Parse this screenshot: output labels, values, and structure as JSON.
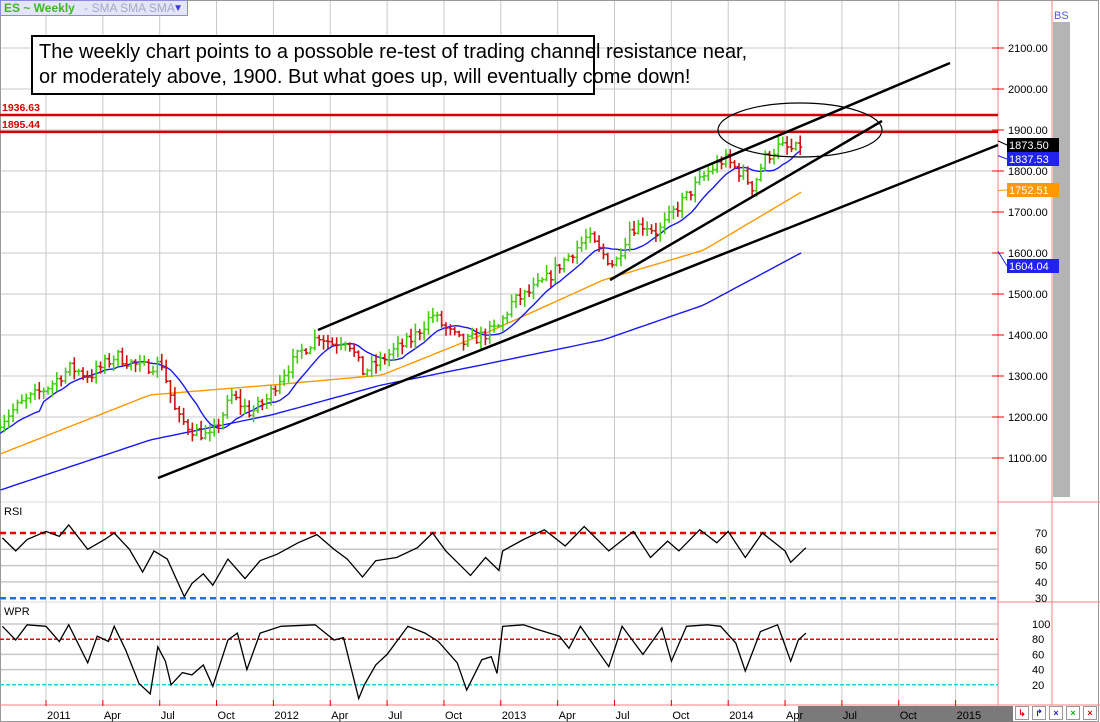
{
  "header": {
    "symbol": "ES ~ Weekly",
    "indicators": "-  SMA SMA SMA",
    "dropdown_icon": "triangle-down"
  },
  "annotation": {
    "line1": "The weekly chart points to a possoble re-test of trading channel resistance near,",
    "line2": "or moderately above, 1900.  But what goes up, will eventually come down!"
  },
  "corner_label": "BS",
  "levels": [
    {
      "label": "1936.63",
      "value": 1936.63,
      "color": "#d40000"
    },
    {
      "label": "1895.44",
      "value": 1895.44,
      "color": "#d40000"
    }
  ],
  "price_axis": [
    "2100.00",
    "2000.00",
    "1900.00",
    "1800.00",
    "1700.00",
    "1600.00",
    "1500.00",
    "1400.00",
    "1300.00",
    "1200.00",
    "1100.00"
  ],
  "price_tags": [
    {
      "label": "1873.50",
      "value": 1873.5,
      "bg": "#000000"
    },
    {
      "label": "1837.53",
      "value": 1837.53,
      "bg": "#2222ee"
    },
    {
      "label": "1752.51",
      "value": 1752.51,
      "bg": "#ff9900"
    },
    {
      "label": "1604.04",
      "value": 1604.04,
      "bg": "#2222ee"
    }
  ],
  "rsi": {
    "title": "RSI",
    "axis": [
      "70",
      "60",
      "50",
      "40",
      "30"
    ]
  },
  "wpr": {
    "title": "WPR",
    "axis": [
      "100",
      "80",
      "60",
      "40",
      "20"
    ]
  },
  "time_axis": [
    {
      "label": "2011",
      "m": 0
    },
    {
      "label": "Apr",
      "m": 3
    },
    {
      "label": "Jul",
      "m": 6
    },
    {
      "label": "Oct",
      "m": 9
    },
    {
      "label": "2012",
      "m": 12
    },
    {
      "label": "Apr",
      "m": 15
    },
    {
      "label": "Jul",
      "m": 18
    },
    {
      "label": "Oct",
      "m": 21
    },
    {
      "label": "2013",
      "m": 24
    },
    {
      "label": "Apr",
      "m": 27
    },
    {
      "label": "Jul",
      "m": 30
    },
    {
      "label": "Oct",
      "m": 33
    },
    {
      "label": "2014",
      "m": 36
    },
    {
      "label": "Apr",
      "m": 39
    },
    {
      "label": "Jul",
      "m": 42
    },
    {
      "label": "Oct",
      "m": 45
    },
    {
      "label": "2015",
      "m": 48
    }
  ],
  "toolbar_buttons": [
    {
      "name": "arrow-down-left",
      "glyph": "↳",
      "color": "#e00000"
    },
    {
      "name": "arrow-up-right",
      "glyph": "↱",
      "color": "#1f1fd0"
    },
    {
      "name": "zoom-blue",
      "glyph": "×",
      "color": "#1f1fd0"
    },
    {
      "name": "zoom-green",
      "glyph": "×",
      "color": "#1aa51a"
    },
    {
      "name": "close-red",
      "glyph": "×",
      "color": "#e00000"
    }
  ],
  "colors": {
    "up": "#44cc11",
    "down": "#cc1111",
    "sma_fast": "#1a1aee",
    "sma_mid": "#ff9900",
    "sma_slow": "#1a1aee",
    "grid": "#c8c8c8",
    "frame": "#f08080"
  },
  "chart_data": {
    "type": "ohlc",
    "title": "ES ~ Weekly",
    "x_unit": "months since Jan 2011",
    "price_range": [
      1000,
      2150
    ],
    "price_anchors": [
      [
        -2.4,
        1190
      ],
      [
        -1.4,
        1230
      ],
      [
        0,
        1270
      ],
      [
        1.3,
        1320
      ],
      [
        2.3,
        1300
      ],
      [
        3.7,
        1350
      ],
      [
        5.0,
        1320
      ],
      [
        6.1,
        1330
      ],
      [
        6.9,
        1200
      ],
      [
        7.7,
        1170
      ],
      [
        8.7,
        1150
      ],
      [
        9.8,
        1250
      ],
      [
        10.8,
        1210
      ],
      [
        11.6,
        1240
      ],
      [
        12.4,
        1300
      ],
      [
        13.5,
        1360
      ],
      [
        14.4,
        1400
      ],
      [
        15.1,
        1380
      ],
      [
        15.9,
        1390
      ],
      [
        16.7,
        1310
      ],
      [
        17.5,
        1330
      ],
      [
        18.3,
        1360
      ],
      [
        19.3,
        1390
      ],
      [
        20.4,
        1450
      ],
      [
        21.2,
        1410
      ],
      [
        22.0,
        1380
      ],
      [
        23.1,
        1400
      ],
      [
        23.9,
        1420
      ],
      [
        24.6,
        1480
      ],
      [
        25.4,
        1500
      ],
      [
        26.5,
        1540
      ],
      [
        27.3,
        1580
      ],
      [
        28.6,
        1640
      ],
      [
        29.3,
        1600
      ],
      [
        30.0,
        1570
      ],
      [
        30.8,
        1660
      ],
      [
        31.6,
        1670
      ],
      [
        32.3,
        1650
      ],
      [
        33.1,
        1700
      ],
      [
        34.2,
        1760
      ],
      [
        35.0,
        1800
      ],
      [
        35.8,
        1830
      ],
      [
        36.8,
        1790
      ],
      [
        37.3,
        1760
      ],
      [
        37.9,
        1830
      ],
      [
        38.7,
        1860
      ],
      [
        39.5,
        1850
      ],
      [
        40.0,
        1873.5
      ]
    ],
    "sma_mid": [
      [
        -2.4,
        1110
      ],
      [
        5.5,
        1254
      ],
      [
        11.9,
        1278
      ],
      [
        17.7,
        1302
      ],
      [
        23.0,
        1400
      ],
      [
        29.4,
        1534
      ],
      [
        34.7,
        1607
      ],
      [
        40.0,
        1752.51
      ]
    ],
    "sma_slow": [
      [
        -2.4,
        1022
      ],
      [
        5.5,
        1144
      ],
      [
        11.9,
        1205
      ],
      [
        17.7,
        1278
      ],
      [
        23.0,
        1327
      ],
      [
        29.4,
        1388
      ],
      [
        34.7,
        1473
      ],
      [
        40.0,
        1604.04
      ]
    ],
    "sma_fast_period_weeks": 10,
    "rsi_levels": {
      "overbought": 70,
      "oversold": 30
    },
    "rsi": [
      [
        -2.3,
        67
      ],
      [
        -1.6,
        59
      ],
      [
        -1.0,
        66
      ],
      [
        0,
        71
      ],
      [
        0.7,
        68
      ],
      [
        1.2,
        75
      ],
      [
        2.2,
        60
      ],
      [
        3.1,
        66
      ],
      [
        3.6,
        70
      ],
      [
        4.4,
        60
      ],
      [
        5.1,
        46
      ],
      [
        5.7,
        59
      ],
      [
        6.4,
        54
      ],
      [
        7.3,
        31
      ],
      [
        7.7,
        39
      ],
      [
        8.3,
        45
      ],
      [
        8.8,
        38
      ],
      [
        9.6,
        54
      ],
      [
        10.5,
        42
      ],
      [
        11.3,
        53
      ],
      [
        12.2,
        57
      ],
      [
        13.3,
        64
      ],
      [
        14.3,
        69
      ],
      [
        15.2,
        60
      ],
      [
        15.9,
        54
      ],
      [
        16.7,
        43
      ],
      [
        17.4,
        53
      ],
      [
        18.5,
        55
      ],
      [
        19.6,
        61
      ],
      [
        20.4,
        70
      ],
      [
        21.1,
        59
      ],
      [
        22.4,
        44
      ],
      [
        23.2,
        55
      ],
      [
        23.9,
        47
      ],
      [
        24.1,
        59
      ],
      [
        25.2,
        66
      ],
      [
        26.3,
        72
      ],
      [
        27.4,
        62
      ],
      [
        28.4,
        74
      ],
      [
        29.7,
        59
      ],
      [
        31.0,
        71
      ],
      [
        31.9,
        55
      ],
      [
        32.8,
        65
      ],
      [
        33.4,
        59
      ],
      [
        34.5,
        72
      ],
      [
        35.4,
        64
      ],
      [
        36.0,
        71
      ],
      [
        36.9,
        55
      ],
      [
        37.8,
        70
      ],
      [
        39.0,
        59
      ],
      [
        39.3,
        52
      ],
      [
        40.1,
        61
      ]
    ],
    "wpr_levels": {
      "upper": 80,
      "lower": 20
    },
    "wpr": [
      [
        -2.3,
        97
      ],
      [
        -1.6,
        79
      ],
      [
        -1.0,
        99
      ],
      [
        0,
        97
      ],
      [
        0.7,
        77
      ],
      [
        1.2,
        99
      ],
      [
        2.2,
        49
      ],
      [
        2.7,
        84
      ],
      [
        3.3,
        77
      ],
      [
        3.6,
        97
      ],
      [
        4.2,
        66
      ],
      [
        4.9,
        22
      ],
      [
        5.5,
        8
      ],
      [
        5.9,
        70
      ],
      [
        6.3,
        51
      ],
      [
        6.6,
        20
      ],
      [
        7.2,
        36
      ],
      [
        7.7,
        33
      ],
      [
        8.3,
        46
      ],
      [
        8.8,
        18
      ],
      [
        9.6,
        79
      ],
      [
        10.1,
        88
      ],
      [
        10.6,
        40
      ],
      [
        11.3,
        88
      ],
      [
        12.4,
        97
      ],
      [
        14.2,
        99
      ],
      [
        15.2,
        79
      ],
      [
        15.7,
        82
      ],
      [
        16.5,
        2
      ],
      [
        16.8,
        20
      ],
      [
        17.4,
        46
      ],
      [
        18.0,
        60
      ],
      [
        19.1,
        97
      ],
      [
        20.0,
        88
      ],
      [
        20.7,
        77
      ],
      [
        21.7,
        49
      ],
      [
        22.2,
        13
      ],
      [
        23.0,
        53
      ],
      [
        23.5,
        57
      ],
      [
        23.8,
        35
      ],
      [
        24.1,
        97
      ],
      [
        25.2,
        99
      ],
      [
        25.9,
        93
      ],
      [
        27.1,
        84
      ],
      [
        27.6,
        68
      ],
      [
        28.2,
        97
      ],
      [
        29.7,
        44
      ],
      [
        30.4,
        97
      ],
      [
        31.5,
        60
      ],
      [
        32.5,
        95
      ],
      [
        33.0,
        51
      ],
      [
        33.8,
        97
      ],
      [
        34.9,
        99
      ],
      [
        35.6,
        97
      ],
      [
        36.4,
        75
      ],
      [
        36.9,
        38
      ],
      [
        37.7,
        90
      ],
      [
        38.6,
        99
      ],
      [
        39.0,
        72
      ],
      [
        39.3,
        51
      ],
      [
        39.7,
        79
      ],
      [
        40.1,
        88
      ]
    ]
  }
}
